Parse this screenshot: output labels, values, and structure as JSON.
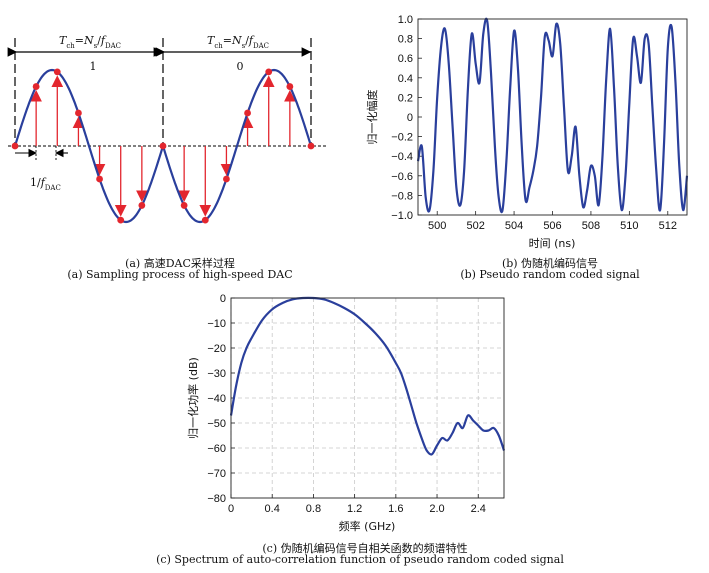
{
  "figure_a": {
    "interval_left": {
      "label_html": "T<tspan baseline-shift='sub' font-size='7'>ch</tspan>=N<tspan baseline-shift='sub' font-size='7'>s</tspan>/f<tspan baseline-shift='sub' font-size='7'>DAC</tspan>",
      "bit": "1"
    },
    "interval_right": {
      "bit": "0"
    },
    "sample_interval_label": "1/f",
    "sample_interval_sub": "DAC",
    "caption_zh": "(a) 高速DAC采样过程",
    "caption_en": "(a) Sampling process of high-speed DAC",
    "colors": {
      "wave": "#2a3f9c",
      "sample": "#e3262e"
    }
  },
  "chart_data": [
    {
      "id": "b",
      "type": "line",
      "xlabel": "时间 (ns)",
      "ylabel": "归一化幅度",
      "xlim": [
        499,
        513
      ],
      "ylim": [
        -1,
        1
      ],
      "xticks": [
        500,
        502,
        504,
        506,
        508,
        510,
        512
      ],
      "yticks": [
        1.0,
        0.8,
        0.6,
        0.4,
        0.2,
        0,
        -0.2,
        -0.4,
        -0.6,
        -0.8,
        -1.0
      ],
      "ytick_labels": [
        "1.0",
        "0.8",
        "0.6",
        "0.4",
        "0.2",
        "0",
        "−0.2",
        "−0.4",
        "−0.6",
        "−0.8",
        "−1.0"
      ],
      "grid": false,
      "series": [
        {
          "x": [
            499.0,
            499.2,
            499.4,
            499.6,
            499.8,
            500.0,
            500.2,
            500.4,
            500.6,
            500.8,
            501.0,
            501.2,
            501.4,
            501.6,
            501.8,
            502.0,
            502.2,
            502.4,
            502.6,
            502.8,
            503.0,
            503.2,
            503.4,
            503.6,
            503.8,
            504.0,
            504.2,
            504.4,
            504.6,
            504.8,
            505.0,
            505.2,
            505.4,
            505.6,
            505.8,
            506.0,
            506.2,
            506.4,
            506.6,
            506.8,
            507.0,
            507.2,
            507.4,
            507.6,
            507.8,
            508.0,
            508.2,
            508.4,
            508.6,
            508.8,
            509.0,
            509.2,
            509.4,
            509.6,
            509.8,
            510.0,
            510.2,
            510.4,
            510.6,
            510.8,
            511.0,
            511.2,
            511.4,
            511.6,
            511.8,
            512.0,
            512.2,
            512.4,
            512.6,
            512.8,
            513.0
          ],
          "y": [
            -0.45,
            -0.3,
            -0.82,
            -0.95,
            -0.55,
            0.2,
            0.72,
            0.9,
            0.55,
            -0.1,
            -0.72,
            -0.9,
            -0.55,
            0.3,
            0.85,
            0.55,
            0.35,
            0.85,
            0.98,
            0.45,
            -0.3,
            -0.82,
            -0.95,
            -0.45,
            0.3,
            0.88,
            0.5,
            -0.3,
            -0.85,
            -0.72,
            -0.55,
            -0.3,
            0.2,
            0.82,
            0.78,
            0.62,
            0.95,
            0.75,
            0.1,
            -0.55,
            -0.4,
            -0.1,
            -0.6,
            -0.92,
            -0.75,
            -0.5,
            -0.6,
            -0.9,
            -0.4,
            0.4,
            0.9,
            0.3,
            -0.5,
            -0.95,
            -0.6,
            0.15,
            0.8,
            0.62,
            0.35,
            0.8,
            0.75,
            0.1,
            -0.55,
            -0.95,
            -0.3,
            0.7,
            0.92,
            0.35,
            -0.5,
            -0.95,
            -0.6
          ]
        }
      ],
      "caption_zh": "(b) 伪随机编码信号",
      "caption_en": "(b) Pseudo random coded signal"
    },
    {
      "id": "c",
      "type": "line",
      "xlabel": "频率 (GHz)",
      "ylabel": "归一化功率 (dB)",
      "xlim": [
        0,
        2.65
      ],
      "ylim": [
        -80,
        0
      ],
      "xticks": [
        0,
        0.4,
        0.8,
        1.2,
        1.6,
        2.0,
        2.4
      ],
      "xtick_labels": [
        "0",
        "0.4",
        "0.8",
        "1.2",
        "1.6",
        "2.0",
        "2.4"
      ],
      "yticks": [
        0,
        -10,
        -20,
        -30,
        -40,
        -50,
        -60,
        -70,
        -80
      ],
      "ytick_labels": [
        "0",
        "−10",
        "−20",
        "−30",
        "−40",
        "−50",
        "−60",
        "−70",
        "−80"
      ],
      "grid": true,
      "series": [
        {
          "x": [
            0.0,
            0.05,
            0.1,
            0.15,
            0.2,
            0.3,
            0.4,
            0.5,
            0.6,
            0.7,
            0.8,
            0.9,
            1.0,
            1.1,
            1.2,
            1.3,
            1.4,
            1.5,
            1.6,
            1.65,
            1.7,
            1.75,
            1.8,
            1.85,
            1.9,
            1.95,
            2.0,
            2.05,
            2.1,
            2.15,
            2.2,
            2.25,
            2.3,
            2.35,
            2.4,
            2.45,
            2.5,
            2.55,
            2.6,
            2.65
          ],
          "y": [
            -47,
            -35,
            -26,
            -20,
            -16,
            -9,
            -4.5,
            -2,
            -0.5,
            0,
            0,
            -0.5,
            -2,
            -4,
            -6.5,
            -10,
            -14,
            -19,
            -26,
            -30,
            -36,
            -43,
            -50,
            -56,
            -61,
            -62.5,
            -59,
            -56,
            -57,
            -54,
            -50,
            -52,
            -47,
            -49,
            -51,
            -53,
            -53,
            -52,
            -55,
            -61
          ]
        }
      ],
      "caption_zh": "(c) 伪随机编码信号自相关函数的频谱特性",
      "caption_en": "(c) Spectrum of auto-correlation function of pseudo random coded signal"
    }
  ]
}
